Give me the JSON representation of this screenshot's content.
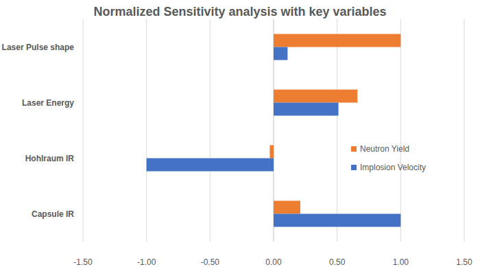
{
  "chart_data": {
    "type": "bar",
    "orientation": "horizontal",
    "title": "Normalized Sensitivity analysis with key variables",
    "categories": [
      "Laser Pulse shape",
      "Laser Energy",
      "Hohlraum IR",
      "Capsule IR"
    ],
    "series": [
      {
        "name": "Neutron Yield",
        "color": "#ed7d31",
        "values": [
          1.0,
          0.66,
          -0.03,
          0.21
        ]
      },
      {
        "name": "Implosion Velocity",
        "color": "#4472c4",
        "values": [
          0.11,
          0.51,
          -1.0,
          1.0
        ]
      }
    ],
    "xlim": [
      -1.5,
      1.5
    ],
    "xticks": [
      {
        "value": -1.5,
        "label": "-1.50"
      },
      {
        "value": -1.0,
        "label": "-1.00"
      },
      {
        "value": -0.5,
        "label": "-0.50"
      },
      {
        "value": 0,
        "label": "0.00"
      },
      {
        "value": 0.5,
        "label": "0.50"
      },
      {
        "value": 1.0,
        "label": "1.00"
      },
      {
        "value": 1.5,
        "label": "1.50"
      }
    ],
    "grid": true,
    "legend": "right"
  }
}
